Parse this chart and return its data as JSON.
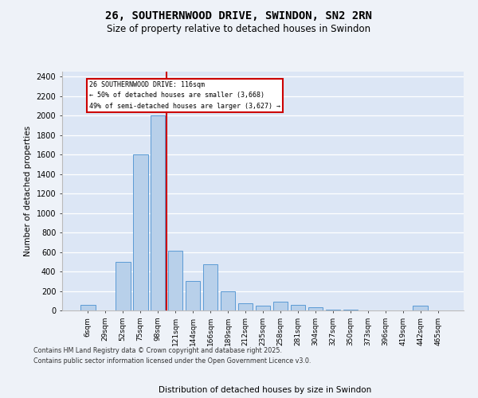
{
  "title_line1": "26, SOUTHERNWOOD DRIVE, SWINDON, SN2 2RN",
  "title_line2": "Size of property relative to detached houses in Swindon",
  "xlabel": "Distribution of detached houses by size in Swindon",
  "ylabel": "Number of detached properties",
  "categories": [
    "6sqm",
    "29sqm",
    "52sqm",
    "75sqm",
    "98sqm",
    "121sqm",
    "144sqm",
    "166sqm",
    "189sqm",
    "212sqm",
    "235sqm",
    "258sqm",
    "281sqm",
    "304sqm",
    "327sqm",
    "350sqm",
    "373sqm",
    "396sqm",
    "419sqm",
    "442sqm",
    "465sqm"
  ],
  "values": [
    55,
    0,
    500,
    1600,
    2000,
    610,
    305,
    475,
    195,
    75,
    45,
    90,
    55,
    35,
    10,
    10,
    0,
    0,
    0,
    45,
    0
  ],
  "bar_color": "#b8d0ea",
  "bar_edge_color": "#5b9bd5",
  "vline_color": "#cc0000",
  "vline_index": 4.5,
  "annotation_text": "26 SOUTHERNWOOD DRIVE: 116sqm\n← 50% of detached houses are smaller (3,668)\n49% of semi-detached houses are larger (3,627) →",
  "annotation_box_color": "#cc0000",
  "ylim_max": 2450,
  "yticks": [
    0,
    200,
    400,
    600,
    800,
    1000,
    1200,
    1400,
    1600,
    1800,
    2000,
    2200,
    2400
  ],
  "bg_color": "#dce6f5",
  "grid_color": "#ffffff",
  "footer_text": "Contains HM Land Registry data © Crown copyright and database right 2025.\nContains public sector information licensed under the Open Government Licence v3.0."
}
